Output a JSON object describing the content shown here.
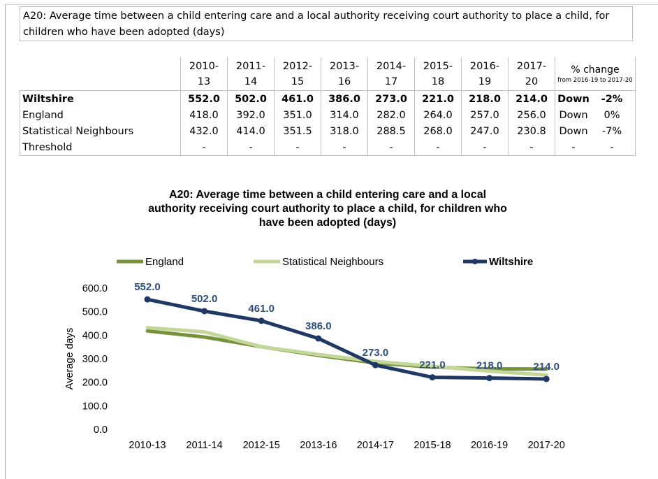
{
  "heading": "A20: Average time between a child entering care and a local authority receiving court authority to place a child, for children who have been adopted (days)",
  "table": {
    "periods": [
      {
        "top": "2010-",
        "bottom": "13"
      },
      {
        "top": "2011-",
        "bottom": "14"
      },
      {
        "top": "2012-",
        "bottom": "15"
      },
      {
        "top": "2013-",
        "bottom": "16"
      },
      {
        "top": "2014-",
        "bottom": "17"
      },
      {
        "top": "2015-",
        "bottom": "18"
      },
      {
        "top": "2016-",
        "bottom": "19"
      },
      {
        "top": "2017-",
        "bottom": "20"
      }
    ],
    "pct_change_header": "% change",
    "pct_change_sub": "from 2016-19 to 2017-20",
    "rows": [
      {
        "label": "Wiltshire",
        "values": [
          "552.0",
          "502.0",
          "461.0",
          "386.0",
          "273.0",
          "221.0",
          "218.0",
          "214.0"
        ],
        "direction": "Down",
        "change": "-2%"
      },
      {
        "label": "England",
        "values": [
          "418.0",
          "392.0",
          "351.0",
          "314.0",
          "282.0",
          "264.0",
          "257.0",
          "256.0"
        ],
        "direction": "Down",
        "change": "0%"
      },
      {
        "label": "Statistical Neighbours",
        "values": [
          "432.0",
          "414.0",
          "351.5",
          "318.0",
          "288.5",
          "268.0",
          "247.0",
          "230.8"
        ],
        "direction": "Down",
        "change": "-7%"
      },
      {
        "label": "Threshold",
        "values": [
          "-",
          "-",
          "-",
          "-",
          "-",
          "-",
          "-",
          "-"
        ],
        "direction": "-",
        "change": "-"
      }
    ]
  },
  "chart_data": {
    "type": "line",
    "title_lines": [
      "A20: Average time between a child entering care and a local",
      "authority receiving court authority to place a child, for children who",
      "have been adopted (days)"
    ],
    "xlabel": "",
    "ylabel": "Average days",
    "ylim": [
      0,
      600
    ],
    "yticks": [
      "0.0",
      "100.0",
      "200.0",
      "300.0",
      "400.0",
      "500.0",
      "600.0"
    ],
    "categories": [
      "2010-13",
      "2011-14",
      "2012-15",
      "2013-16",
      "2014-17",
      "2015-18",
      "2016-19",
      "2017-20"
    ],
    "legend_position": "top",
    "series": [
      {
        "name": "England",
        "color": "#76933c",
        "values": [
          418,
          392,
          351,
          314,
          282,
          264,
          257,
          256
        ],
        "markers": false,
        "labels": []
      },
      {
        "name": "Statistical Neighbours",
        "color": "#c4d79b",
        "values": [
          432,
          414,
          351.5,
          318,
          288.5,
          268,
          247,
          230.8
        ],
        "markers": false,
        "labels": []
      },
      {
        "name": "Wiltshire",
        "color": "#1f3864",
        "label_color": "#2e4d7c",
        "values": [
          552,
          502,
          461,
          386,
          273,
          221,
          218,
          214
        ],
        "markers": true,
        "labels": [
          "552.0",
          "502.0",
          "461.0",
          "386.0",
          "273.0",
          "221.0",
          "218.0",
          "214.0"
        ]
      }
    ]
  }
}
